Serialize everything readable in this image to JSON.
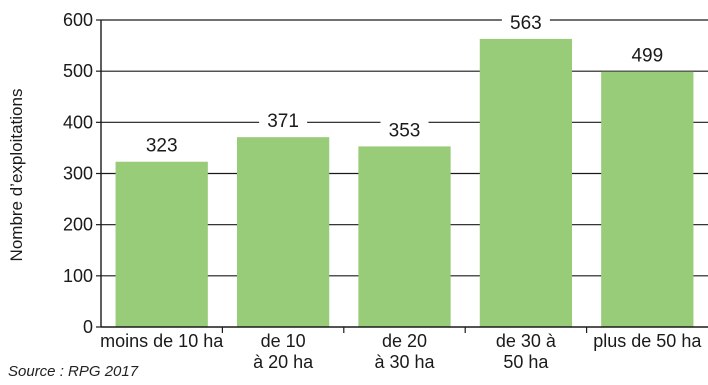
{
  "chart_data": {
    "type": "bar",
    "categories": [
      [
        "moins de 10 ha"
      ],
      [
        "de 10",
        "à 20 ha"
      ],
      [
        "de 20",
        "à 30 ha"
      ],
      [
        "de 30 à",
        "50 ha"
      ],
      [
        "plus de 50 ha"
      ]
    ],
    "values": [
      323,
      371,
      353,
      563,
      499
    ],
    "title": "",
    "xlabel": "",
    "ylabel": "Nombre d’exploitations",
    "ylim": [
      0,
      600
    ],
    "yticks": [
      0,
      100,
      200,
      300,
      400,
      500,
      600
    ],
    "grid": true,
    "bar_color": "#99cc78",
    "data_labels": true
  },
  "source": "Source : RPG 2017"
}
